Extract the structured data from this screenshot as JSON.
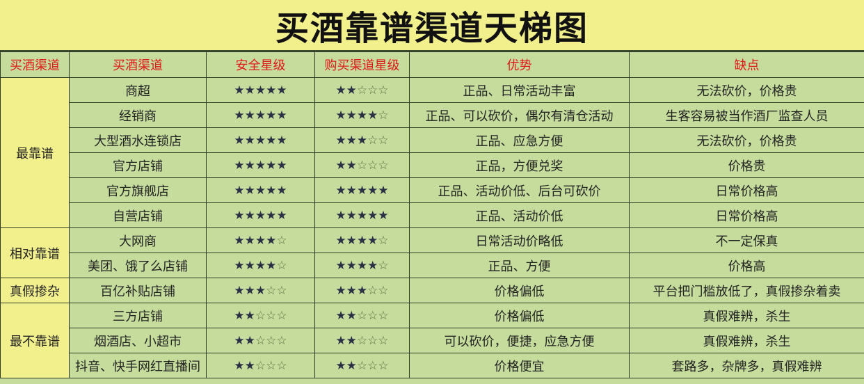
{
  "title": "买酒靠谱渠道天梯图",
  "headers": [
    "买酒渠道",
    "买酒渠道",
    "安全星级",
    "购买渠道星级",
    "优势",
    "缺点"
  ],
  "colors": {
    "title_bg": "#f2f08c",
    "cell_bg": "#c6dc9c",
    "header_text": "#e01818",
    "star": "#2b3045"
  },
  "groups": [
    {
      "label": "最靠谱",
      "rows": [
        {
          "channel": "商超",
          "safety": 5,
          "channel_rating": 2,
          "pros": "正品、日常活动丰富",
          "cons": "无法砍价，价格贵"
        },
        {
          "channel": "经销商",
          "safety": 5,
          "channel_rating": 4,
          "pros": "正品、可以砍价，偶尔有清仓活动",
          "cons": "生客容易被当作酒厂监查人员"
        },
        {
          "channel": "大型酒水连锁店",
          "safety": 5,
          "channel_rating": 3,
          "pros": "正品、应急方便",
          "cons": "无法砍价，价格贵"
        },
        {
          "channel": "官方店铺",
          "safety": 5,
          "channel_rating": 2,
          "pros": "正品，方便兑奖",
          "cons": "价格贵"
        },
        {
          "channel": "官方旗舰店",
          "safety": 5,
          "channel_rating": 5,
          "pros": "正品、活动价低、后台可砍价",
          "cons": "日常价格高"
        },
        {
          "channel": "自营店铺",
          "safety": 5,
          "channel_rating": 5,
          "pros": "正品、活动价低",
          "cons": "日常价格高"
        }
      ]
    },
    {
      "label": "相对靠谱",
      "rows": [
        {
          "channel": "大网商",
          "safety": 4,
          "channel_rating": 4,
          "pros": "日常活动价略低",
          "cons": "不一定保真"
        },
        {
          "channel": "美团、饿了么店铺",
          "safety": 4,
          "channel_rating": 4,
          "pros": "正品、方便",
          "cons": "价格高"
        }
      ]
    },
    {
      "label": "真假掺杂",
      "rows": [
        {
          "channel": "百亿补贴店铺",
          "safety": 3,
          "channel_rating": 3,
          "pros": "价格偏低",
          "cons": "平台把门槛放低了，真假掺杂着卖"
        }
      ]
    },
    {
      "label": "最不靠谱",
      "rows": [
        {
          "channel": "三方店铺",
          "safety": 2,
          "channel_rating": 2,
          "pros": "价格偏低",
          "cons": "真假难辨，杀生"
        },
        {
          "channel": "烟酒店、小超市",
          "safety": 2,
          "channel_rating": 2,
          "pros": "可以砍价，便捷，应急方便",
          "cons": "真假难辨，杀生"
        },
        {
          "channel": "抖音、快手网红直播间",
          "safety": 2,
          "channel_rating": 2,
          "pros": "价格便宜",
          "cons": "套路多，杂牌多，真假难辨"
        }
      ]
    }
  ]
}
